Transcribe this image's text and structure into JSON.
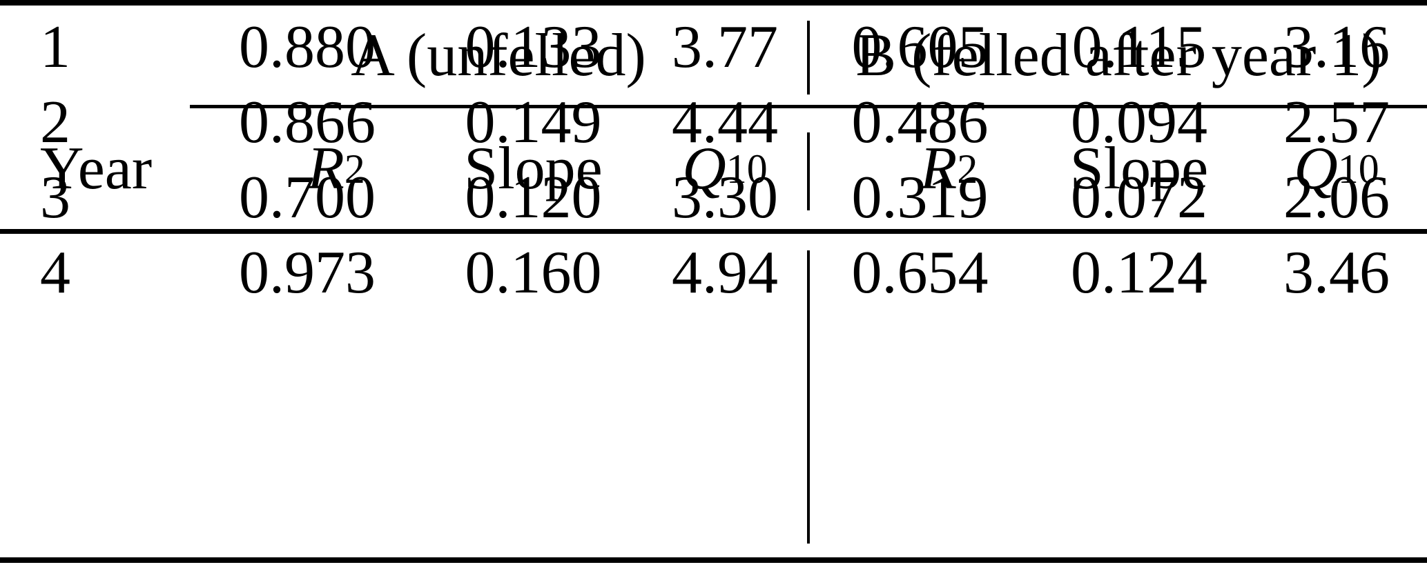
{
  "table": {
    "group_headers": {
      "a": "A (unfelled)",
      "b": "B (felled after year 1)"
    },
    "column_headers": {
      "year": "Year",
      "r2_base": "R",
      "r2_sup": "2",
      "slope": "Slope",
      "q10_base": "Q",
      "q10_sub": "10"
    },
    "rows": [
      {
        "year": "1",
        "a": {
          "r2": "0.880",
          "slope": "0.133",
          "q10": "3.77"
        },
        "b": {
          "r2": "0.605",
          "slope": "0.115",
          "q10": "3.16"
        }
      },
      {
        "year": "2",
        "a": {
          "r2": "0.866",
          "slope": "0.149",
          "q10": "4.44"
        },
        "b": {
          "r2": "0.486",
          "slope": "0.094",
          "q10": "2.57"
        }
      },
      {
        "year": "3",
        "a": {
          "r2": "0.700",
          "slope": "0.120",
          "q10": "3.30"
        },
        "b": {
          "r2": "0.319",
          "slope": "0.072",
          "q10": "2.06"
        }
      },
      {
        "year": "4",
        "a": {
          "r2": "0.973",
          "slope": "0.160",
          "q10": "4.94"
        },
        "b": {
          "r2": "0.654",
          "slope": "0.124",
          "q10": "3.46"
        }
      }
    ]
  },
  "colors": {
    "text": "#000000",
    "background": "#ffffff",
    "rule": "#000000"
  },
  "chart_data": {
    "type": "table",
    "title": "",
    "column_groups": [
      "",
      "A (unfelled)",
      "A (unfelled)",
      "A (unfelled)",
      "B (felled after year 1)",
      "B (felled after year 1)",
      "B (felled after year 1)"
    ],
    "columns": [
      "Year",
      "R^2",
      "Slope",
      "Q_10",
      "R^2",
      "Slope",
      "Q_10"
    ],
    "rows": [
      [
        1,
        0.88,
        0.133,
        3.77,
        0.605,
        0.115,
        3.16
      ],
      [
        2,
        0.866,
        0.149,
        4.44,
        0.486,
        0.094,
        2.57
      ],
      [
        3,
        0.7,
        0.12,
        3.3,
        0.319,
        0.072,
        2.06
      ],
      [
        4,
        0.973,
        0.16,
        4.94,
        0.654,
        0.124,
        3.46
      ]
    ]
  }
}
